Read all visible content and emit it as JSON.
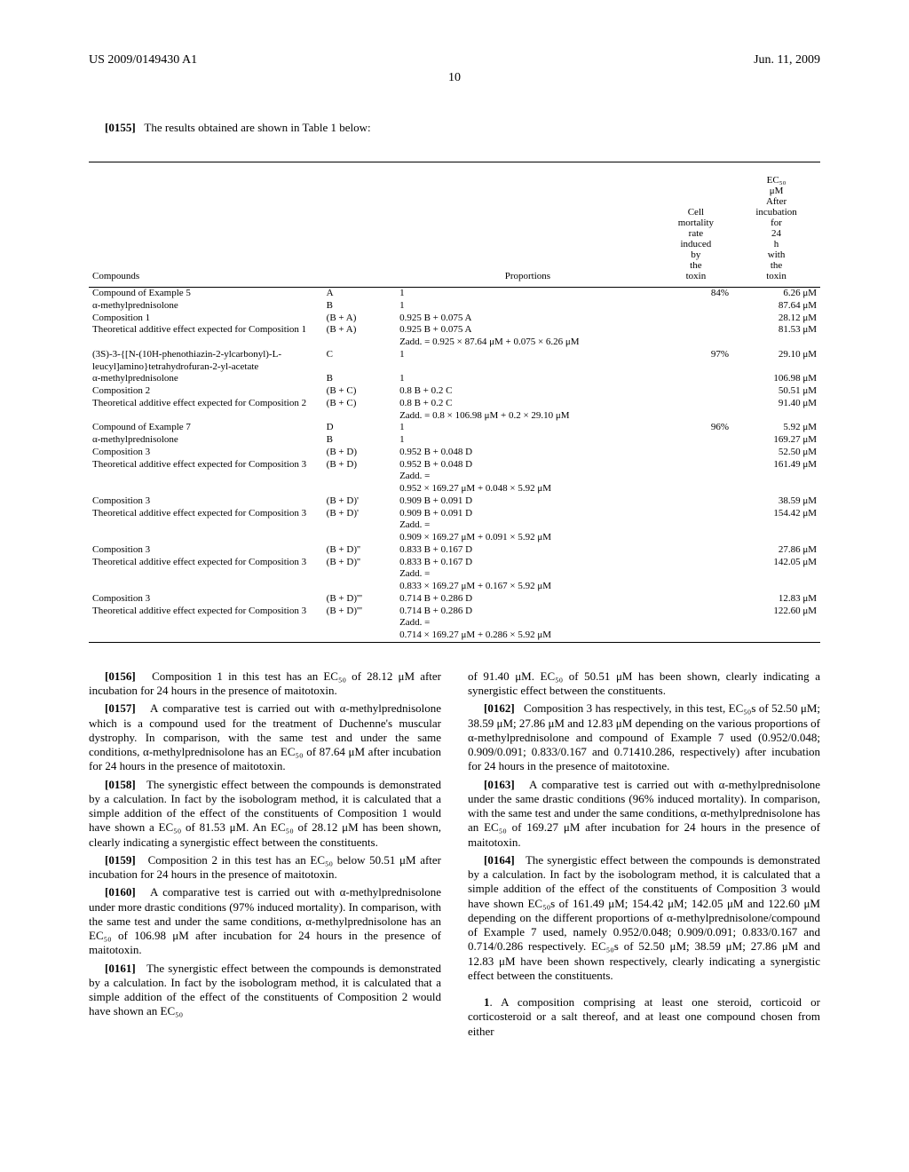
{
  "header": {
    "left": "US 2009/0149430 A1",
    "right": "Jun. 11, 2009",
    "page": "10"
  },
  "intro": {
    "num": "[0155]",
    "text": "The results obtained are shown in Table 1 below:"
  },
  "table": {
    "columns": [
      "Compounds",
      "",
      "Proportions",
      "Cell mortality rate induced by the toxin",
      "EC₅₀ μM After incubation for 24 h with the toxin"
    ],
    "widths": [
      "32%",
      "10%",
      "36%",
      "10%",
      "12%"
    ],
    "rows": [
      [
        "Compound of Example 5",
        "A",
        "1",
        "84%",
        "6.26 μM"
      ],
      [
        "α-methylprednisolone",
        "B",
        "1",
        "",
        "87.64 μM"
      ],
      [
        "Composition 1",
        "(B + A)",
        "0.925 B + 0.075 A",
        "",
        "28.12 μM"
      ],
      [
        "Theoretical additive effect expected for Composition 1",
        "(B + A)",
        "0.925 B + 0.075 A\nZadd. = 0.925 × 87.64 μM + 0.075 × 6.26 μM",
        "",
        "81.53 μM"
      ],
      [
        "(3S)-3-{[N-(10H-phenothiazin-2-ylcarbonyl)-L-leucyl]amino}tetrahydrofuran-2-yl-acetate",
        "C",
        "1",
        "97%",
        "29.10 μM"
      ],
      [
        "α-methylprednisolone",
        "B",
        "1",
        "",
        "106.98 μM"
      ],
      [
        "Composition 2",
        "(B + C)",
        "0.8 B + 0.2 C",
        "",
        "50.51 μM"
      ],
      [
        "Theoretical additive effect expected for Composition 2",
        "(B + C)",
        "0.8 B + 0.2 C\nZadd. = 0.8 × 106.98 μM + 0.2 × 29.10 μM",
        "",
        "91.40 μM"
      ],
      [
        "Compound of Example 7",
        "D",
        "1",
        "96%",
        "5.92 μM"
      ],
      [
        "α-methylprednisolone",
        "B",
        "1",
        "",
        "169.27 μM"
      ],
      [
        "Composition 3",
        "(B + D)",
        "0.952 B + 0.048 D",
        "",
        "52.50 μM"
      ],
      [
        "Theoretical additive effect expected for Composition 3",
        "(B + D)",
        "0.952 B + 0.048 D\nZadd. =\n0.952 × 169.27 μM + 0.048 × 5.92 μM",
        "",
        "161.49 μM"
      ],
      [
        "Composition 3",
        "(B + D)'",
        "0.909 B + 0.091 D",
        "",
        "38.59 μM"
      ],
      [
        "Theoretical additive effect expected for Composition 3",
        "(B + D)'",
        "0.909 B + 0.091 D\nZadd. =\n0.909 × 169.27 μM + 0.091 × 5.92 μM",
        "",
        "154.42 μM"
      ],
      [
        "Composition 3",
        "(B + D)''",
        "0.833 B + 0.167 D",
        "",
        "27.86 μM"
      ],
      [
        "Theoretical additive effect expected for Composition 3",
        "(B + D)''",
        "0.833 B + 0.167 D\nZadd. =\n0.833 × 169.27 μM + 0.167 × 5.92 μM",
        "",
        "142.05 μM"
      ],
      [
        "Composition 3",
        "(B + D)'''",
        "0.714 B + 0.286 D",
        "",
        "12.83 μM"
      ],
      [
        "Theoretical additive effect expected for Composition 3",
        "(B + D)'''",
        "0.714 B + 0.286 D\nZadd. =\n0.714 × 169.27 μM + 0.286 × 5.92 μM",
        "",
        "122.60 μM"
      ]
    ]
  },
  "leftCol": [
    {
      "num": "[0156]",
      "text": "Composition 1 in this test has an EC₅₀ of 28.12 μM after incubation for 24 hours in the presence of maitotoxin."
    },
    {
      "num": "[0157]",
      "text": "A comparative test is carried out with α-methylprednisolone which is a compound used for the treatment of Duchenne's muscular dystrophy. In comparison, with the same test and under the same conditions, α-methylprednisolone has an EC₅₀ of 87.64 μM after incubation for 24 hours in the presence of maitotoxin."
    },
    {
      "num": "[0158]",
      "text": "The synergistic effect between the compounds is demonstrated by a calculation. In fact by the isobologram method, it is calculated that a simple addition of the effect of the constituents of Composition 1 would have shown a EC₅₀ of 81.53 μM. An EC₅₀ of 28.12 μM has been shown, clearly indicating a synergistic effect between the constituents."
    },
    {
      "num": "[0159]",
      "text": "Composition 2 in this test has an EC₅₀ below 50.51 μM after incubation for 24 hours in the presence of maitotoxin."
    },
    {
      "num": "[0160]",
      "text": "A comparative test is carried out with α-methylprednisolone under more drastic conditions (97% induced mortality). In comparison, with the same test and under the same conditions, α-methylprednisolone has an EC₅₀ of 106.98 μM after incubation for 24 hours in the presence of maitotoxin."
    },
    {
      "num": "[0161]",
      "text": "The synergistic effect between the compounds is demonstrated by a calculation. In fact by the isobologram method, it is calculated that a simple addition of the effect of the constituents of Composition 2 would have shown an EC₅₀"
    }
  ],
  "rightCol": [
    {
      "num": "",
      "text": "of 91.40 μM. EC₅₀ of 50.51 μM has been shown, clearly indicating a synergistic effect between the constituents."
    },
    {
      "num": "[0162]",
      "text": "Composition 3 has respectively, in this test, EC₅₀s of 52.50 μM; 38.59 μM; 27.86 μM and 12.83 μM depending on the various proportions of α-methylprednisolone and compound of Example 7 used (0.952/0.048; 0.909/0.091; 0.833/0.167 and 0.71410.286, respectively) after incubation for 24 hours in the presence of maitotoxine."
    },
    {
      "num": "[0163]",
      "text": "A comparative test is carried out with α-methylprednisolone under the same drastic conditions (96% induced mortality). In comparison, with the same test and under the same conditions, α-methylprednisolone has an EC₅₀ of 169.27 μM after incubation for 24 hours in the presence of maitotoxin."
    },
    {
      "num": "[0164]",
      "text": "The synergistic effect between the compounds is demonstrated by a calculation. In fact by the isobologram method, it is calculated that a simple addition of the effect of the constituents of Composition 3 would have shown EC₅₀s of 161.49 μM; 154.42 μM; 142.05 μM and 122.60 μM depending on the different proportions of α-methylprednisolone/compound of Example 7 used, namely 0.952/0.048; 0.909/0.091; 0.833/0.167 and 0.714/0.286 respectively. EC₅₀s of 52.50 μM; 38.59 μM; 27.86 μM and 12.83 μM have been shown respectively, clearly indicating a synergistic effect between the constituents."
    }
  ],
  "claim": {
    "num": "1",
    "text": ". A composition comprising at least one steroid, corticoid or corticosteroid or a salt thereof, and at least one compound chosen from either"
  }
}
